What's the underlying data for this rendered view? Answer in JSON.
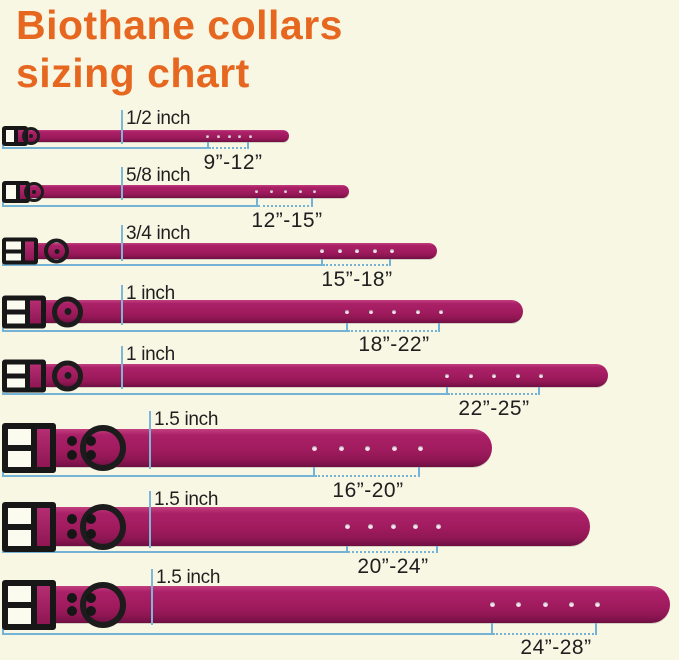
{
  "title": {
    "line1": "Biothane collars",
    "line2": "sizing chart"
  },
  "colors": {
    "background": "#f8f7e4",
    "title_text": "#e6671f",
    "collar": "#a01b5e",
    "guide_line": "#74b3d6",
    "label_text": "#1f1f1f",
    "buckle": "#171717",
    "hole_dot": "#f6e4ef"
  },
  "chart_data": {
    "type": "table",
    "title": "Biothane collars sizing chart",
    "columns": [
      "collar_width",
      "size_range"
    ],
    "rows": [
      {
        "collar_width": "1/2 inch",
        "size_range": "9”-12”"
      },
      {
        "collar_width": "5/8 inch",
        "size_range": "12”-15”"
      },
      {
        "collar_width": "3/4 inch",
        "size_range": "15”-18”"
      },
      {
        "collar_width": "1 inch",
        "size_range": "18”-22”"
      },
      {
        "collar_width": "1 inch",
        "size_range": "22”-25”"
      },
      {
        "collar_width": "1.5 inch",
        "size_range": "16”-20”"
      },
      {
        "collar_width": "1.5 inch",
        "size_range": "20”-24”"
      },
      {
        "collar_width": "1.5 inch",
        "size_range": "24”-28”"
      }
    ]
  },
  "rows": [
    {
      "width_label": "1/2 inch",
      "size_label": "9”-12”"
    },
    {
      "width_label": "5/8 inch",
      "size_label": "12”-15”"
    },
    {
      "width_label": "3/4 inch",
      "size_label": "15”-18”"
    },
    {
      "width_label": "1 inch",
      "size_label": "18”-22”"
    },
    {
      "width_label": "1 inch",
      "size_label": "22”-25”"
    },
    {
      "width_label": "1.5 inch",
      "size_label": "16”-20”"
    },
    {
      "width_label": "1.5 inch",
      "size_label": "20”-24”"
    },
    {
      "width_label": "1.5 inch",
      "size_label": "24”-28”"
    }
  ]
}
